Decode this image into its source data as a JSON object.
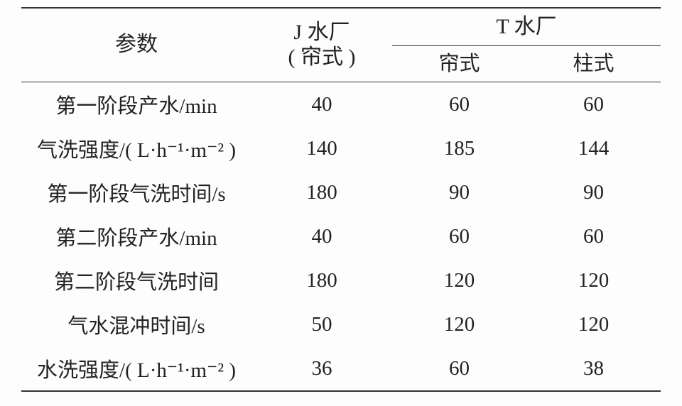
{
  "table": {
    "type": "table",
    "background_color": "#fdfdfd",
    "rule_color": "#333333",
    "text_color": "#222222",
    "font_family": "SimSun / Songti serif",
    "header_fontsize_pt": 22,
    "body_fontsize_pt": 22,
    "column_widths_pct": [
      36,
      22,
      21,
      21
    ],
    "columns": {
      "param_label": "参数",
      "j_plant": {
        "line1": "J 水厂",
        "line2": "( 帘式 )"
      },
      "t_plant_span": "T 水厂",
      "t_sub1": "帘式",
      "t_sub2": "柱式"
    },
    "rows": [
      {
        "label": "第一阶段产水/min",
        "j": "40",
        "t1": "60",
        "t2": "60"
      },
      {
        "label": "气洗强度/( L·h⁻¹·m⁻² )",
        "j": "140",
        "t1": "185",
        "t2": "144"
      },
      {
        "label": "第一阶段气洗时间/s",
        "j": "180",
        "t1": "90",
        "t2": "90"
      },
      {
        "label": "第二阶段产水/min",
        "j": "40",
        "t1": "60",
        "t2": "60"
      },
      {
        "label": "第二阶段气洗时间",
        "j": "180",
        "t1": "120",
        "t2": "120"
      },
      {
        "label": "气水混冲时间/s",
        "j": "50",
        "t1": "120",
        "t2": "120"
      },
      {
        "label": "水洗强度/( L·h⁻¹·m⁻² )",
        "j": "36",
        "t1": "60",
        "t2": "38"
      }
    ]
  }
}
